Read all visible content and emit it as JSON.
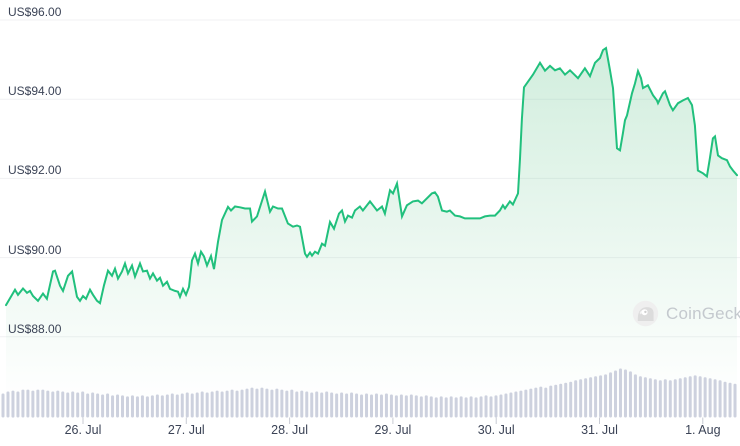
{
  "page": {
    "background": "#ffffff"
  },
  "chart": {
    "y_axis": {
      "ticks": [
        {
          "value": 96,
          "label": "US$96.00"
        },
        {
          "value": 94,
          "label": "US$94.00"
        },
        {
          "value": 92,
          "label": "US$92.00"
        },
        {
          "value": 90,
          "label": "US$90.00"
        },
        {
          "value": 88,
          "label": "US$88.00"
        }
      ]
    },
    "x_axis": {
      "ticks": [
        {
          "day_offset": 0,
          "label": "26. Jul"
        },
        {
          "day_offset": 1,
          "label": "27. Jul"
        },
        {
          "day_offset": 2,
          "label": "28. Jul"
        },
        {
          "day_offset": 3,
          "label": "29. Jul"
        },
        {
          "day_offset": 4,
          "label": "30. Jul"
        },
        {
          "day_offset": 5,
          "label": "31. Jul"
        },
        {
          "day_offset": 6,
          "label": "1. Aug"
        }
      ]
    },
    "watermark": {
      "label": "CoinGecko",
      "icon": "coingecko-gecko-icon"
    },
    "colors": {
      "line": "#21c07d",
      "area_fill": "#4cbb7b",
      "grid": "#f0f1f3",
      "volume_bar": "#cdd1de",
      "axis_text": "#3b4356",
      "tick_mark": "#c8cbd3",
      "watermark_text": "#c4c9ce",
      "background": "#ffffff"
    }
  },
  "chart_data": {
    "type": "area",
    "title": "",
    "xlabel": "",
    "ylabel": "",
    "currency_prefix": "US$",
    "x_unit": "days relative to 26. Jul",
    "x_range": [
      -0.745,
      6.331
    ],
    "ylim": [
      88,
      96
    ],
    "grid": "horizontal",
    "legend": "none",
    "series": [
      {
        "name": "price_usd",
        "type": "line-area",
        "points": [
          [
            -0.745,
            88.8
          ],
          [
            -0.658,
            89.19
          ],
          [
            -0.629,
            89.06
          ],
          [
            -0.581,
            89.22
          ],
          [
            -0.542,
            89.11
          ],
          [
            -0.513,
            89.16
          ],
          [
            -0.484,
            89.03
          ],
          [
            -0.436,
            88.91
          ],
          [
            -0.387,
            89.09
          ],
          [
            -0.349,
            88.96
          ],
          [
            -0.29,
            89.65
          ],
          [
            -0.271,
            89.67
          ],
          [
            -0.223,
            89.29
          ],
          [
            -0.194,
            89.16
          ],
          [
            -0.145,
            89.54
          ],
          [
            -0.106,
            89.65
          ],
          [
            -0.058,
            89.01
          ],
          [
            -0.029,
            88.91
          ],
          [
            0.0,
            89.03
          ],
          [
            0.029,
            88.96
          ],
          [
            0.068,
            89.19
          ],
          [
            0.097,
            89.06
          ],
          [
            0.136,
            88.91
          ],
          [
            0.165,
            88.85
          ],
          [
            0.203,
            89.3
          ],
          [
            0.242,
            89.67
          ],
          [
            0.281,
            89.54
          ],
          [
            0.31,
            89.72
          ],
          [
            0.339,
            89.47
          ],
          [
            0.378,
            89.65
          ],
          [
            0.407,
            89.85
          ],
          [
            0.436,
            89.6
          ],
          [
            0.474,
            89.8
          ],
          [
            0.503,
            89.52
          ],
          [
            0.552,
            89.85
          ],
          [
            0.581,
            89.65
          ],
          [
            0.62,
            89.67
          ],
          [
            0.649,
            89.47
          ],
          [
            0.678,
            89.6
          ],
          [
            0.716,
            89.42
          ],
          [
            0.745,
            89.49
          ],
          [
            0.774,
            89.29
          ],
          [
            0.813,
            89.39
          ],
          [
            0.842,
            89.21
          ],
          [
            0.891,
            89.16
          ],
          [
            0.92,
            89.14
          ],
          [
            0.939,
            89.01
          ],
          [
            0.968,
            89.21
          ],
          [
            0.997,
            89.06
          ],
          [
            1.026,
            89.26
          ],
          [
            1.055,
            89.93
          ],
          [
            1.084,
            90.1
          ],
          [
            1.113,
            89.85
          ],
          [
            1.142,
            90.15
          ],
          [
            1.171,
            90.03
          ],
          [
            1.2,
            89.8
          ],
          [
            1.239,
            90.04
          ],
          [
            1.268,
            89.71
          ],
          [
            1.307,
            90.4
          ],
          [
            1.346,
            90.95
          ],
          [
            1.404,
            91.28
          ],
          [
            1.433,
            91.19
          ],
          [
            1.471,
            91.29
          ],
          [
            1.52,
            91.27
          ],
          [
            1.568,
            91.24
          ],
          [
            1.617,
            91.24
          ],
          [
            1.636,
            90.91
          ],
          [
            1.684,
            91.04
          ],
          [
            1.762,
            91.67
          ],
          [
            1.81,
            91.16
          ],
          [
            1.839,
            91.29
          ],
          [
            1.888,
            91.24
          ],
          [
            1.926,
            91.24
          ],
          [
            1.984,
            90.86
          ],
          [
            2.033,
            90.78
          ],
          [
            2.072,
            90.81
          ],
          [
            2.101,
            90.78
          ],
          [
            2.149,
            90.1
          ],
          [
            2.168,
            90.02
          ],
          [
            2.197,
            90.13
          ],
          [
            2.217,
            90.05
          ],
          [
            2.246,
            90.15
          ],
          [
            2.275,
            90.1
          ],
          [
            2.314,
            90.35
          ],
          [
            2.343,
            90.3
          ],
          [
            2.391,
            90.9
          ],
          [
            2.43,
            90.73
          ],
          [
            2.478,
            91.11
          ],
          [
            2.507,
            91.19
          ],
          [
            2.536,
            90.91
          ],
          [
            2.565,
            91.06
          ],
          [
            2.604,
            91.01
          ],
          [
            2.633,
            91.19
          ],
          [
            2.681,
            91.29
          ],
          [
            2.71,
            91.19
          ],
          [
            2.749,
            91.32
          ],
          [
            2.778,
            91.42
          ],
          [
            2.846,
            91.19
          ],
          [
            2.894,
            91.29
          ],
          [
            2.923,
            91.11
          ],
          [
            2.972,
            91.7
          ],
          [
            3.001,
            91.62
          ],
          [
            3.04,
            91.87
          ],
          [
            3.088,
            91.04
          ],
          [
            3.136,
            91.32
          ],
          [
            3.194,
            91.42
          ],
          [
            3.243,
            91.44
          ],
          [
            3.281,
            91.37
          ],
          [
            3.378,
            91.62
          ],
          [
            3.407,
            91.65
          ],
          [
            3.436,
            91.54
          ],
          [
            3.475,
            91.19
          ],
          [
            3.523,
            91.16
          ],
          [
            3.552,
            91.19
          ],
          [
            3.601,
            91.06
          ],
          [
            3.649,
            91.04
          ],
          [
            3.697,
            90.99
          ],
          [
            3.746,
            90.99
          ],
          [
            3.794,
            90.99
          ],
          [
            3.843,
            90.99
          ],
          [
            3.891,
            91.04
          ],
          [
            3.94,
            91.06
          ],
          [
            3.988,
            91.06
          ],
          [
            4.036,
            91.19
          ],
          [
            4.065,
            91.32
          ],
          [
            4.085,
            91.24
          ],
          [
            4.133,
            91.42
          ],
          [
            4.162,
            91.34
          ],
          [
            4.211,
            91.62
          ],
          [
            4.23,
            92.5
          ],
          [
            4.249,
            93.5
          ],
          [
            4.269,
            94.3
          ],
          [
            4.356,
            94.62
          ],
          [
            4.424,
            94.92
          ],
          [
            4.472,
            94.72
          ],
          [
            4.521,
            94.84
          ],
          [
            4.569,
            94.73
          ],
          [
            4.617,
            94.78
          ],
          [
            4.666,
            94.62
          ],
          [
            4.714,
            94.73
          ],
          [
            4.792,
            94.53
          ],
          [
            4.859,
            94.78
          ],
          [
            4.908,
            94.58
          ],
          [
            4.956,
            94.92
          ],
          [
            5.005,
            95.04
          ],
          [
            5.034,
            95.24
          ],
          [
            5.063,
            95.29
          ],
          [
            5.102,
            94.73
          ],
          [
            5.131,
            94.28
          ],
          [
            5.169,
            92.76
          ],
          [
            5.198,
            92.71
          ],
          [
            5.227,
            93.14
          ],
          [
            5.247,
            93.47
          ],
          [
            5.266,
            93.59
          ],
          [
            5.315,
            94.15
          ],
          [
            5.344,
            94.4
          ],
          [
            5.373,
            94.71
          ],
          [
            5.402,
            94.53
          ],
          [
            5.421,
            94.28
          ],
          [
            5.469,
            94.35
          ],
          [
            5.518,
            94.1
          ],
          [
            5.556,
            93.97
          ],
          [
            5.566,
            93.9
          ],
          [
            5.614,
            94.15
          ],
          [
            5.634,
            94.2
          ],
          [
            5.682,
            93.85
          ],
          [
            5.711,
            93.72
          ],
          [
            5.76,
            93.9
          ],
          [
            5.808,
            93.97
          ],
          [
            5.856,
            94.03
          ],
          [
            5.895,
            93.85
          ],
          [
            5.924,
            93.34
          ],
          [
            5.953,
            92.2
          ],
          [
            6.002,
            92.13
          ],
          [
            6.04,
            92.05
          ],
          [
            6.069,
            92.51
          ],
          [
            6.098,
            93.01
          ],
          [
            6.118,
            93.06
          ],
          [
            6.147,
            92.58
          ],
          [
            6.185,
            92.51
          ],
          [
            6.234,
            92.46
          ],
          [
            6.263,
            92.3
          ],
          [
            6.292,
            92.2
          ],
          [
            6.331,
            92.08
          ]
        ]
      },
      {
        "name": "volume",
        "type": "bar",
        "unit": "relative (max = 1)",
        "values": [
          0.49,
          0.53,
          0.55,
          0.53,
          0.57,
          0.57,
          0.55,
          0.57,
          0.57,
          0.55,
          0.53,
          0.55,
          0.53,
          0.51,
          0.53,
          0.51,
          0.53,
          0.49,
          0.51,
          0.49,
          0.47,
          0.49,
          0.45,
          0.47,
          0.45,
          0.43,
          0.45,
          0.43,
          0.45,
          0.43,
          0.45,
          0.47,
          0.45,
          0.47,
          0.49,
          0.47,
          0.49,
          0.51,
          0.49,
          0.51,
          0.53,
          0.51,
          0.53,
          0.55,
          0.53,
          0.55,
          0.57,
          0.55,
          0.57,
          0.59,
          0.61,
          0.59,
          0.61,
          0.59,
          0.57,
          0.59,
          0.57,
          0.55,
          0.57,
          0.53,
          0.55,
          0.53,
          0.51,
          0.53,
          0.51,
          0.53,
          0.51,
          0.49,
          0.51,
          0.49,
          0.51,
          0.49,
          0.47,
          0.49,
          0.47,
          0.49,
          0.47,
          0.49,
          0.47,
          0.45,
          0.47,
          0.45,
          0.47,
          0.45,
          0.43,
          0.45,
          0.43,
          0.41,
          0.43,
          0.41,
          0.43,
          0.41,
          0.43,
          0.41,
          0.43,
          0.41,
          0.43,
          0.45,
          0.43,
          0.45,
          0.47,
          0.49,
          0.51,
          0.53,
          0.55,
          0.57,
          0.59,
          0.61,
          0.63,
          0.61,
          0.65,
          0.67,
          0.69,
          0.71,
          0.73,
          0.76,
          0.78,
          0.8,
          0.82,
          0.84,
          0.86,
          0.88,
          0.92,
          0.96,
          1.0,
          0.98,
          0.94,
          0.88,
          0.84,
          0.82,
          0.8,
          0.78,
          0.76,
          0.78,
          0.76,
          0.78,
          0.8,
          0.82,
          0.84,
          0.86,
          0.84,
          0.82,
          0.8,
          0.78,
          0.76,
          0.73,
          0.71,
          0.69
        ]
      }
    ]
  }
}
